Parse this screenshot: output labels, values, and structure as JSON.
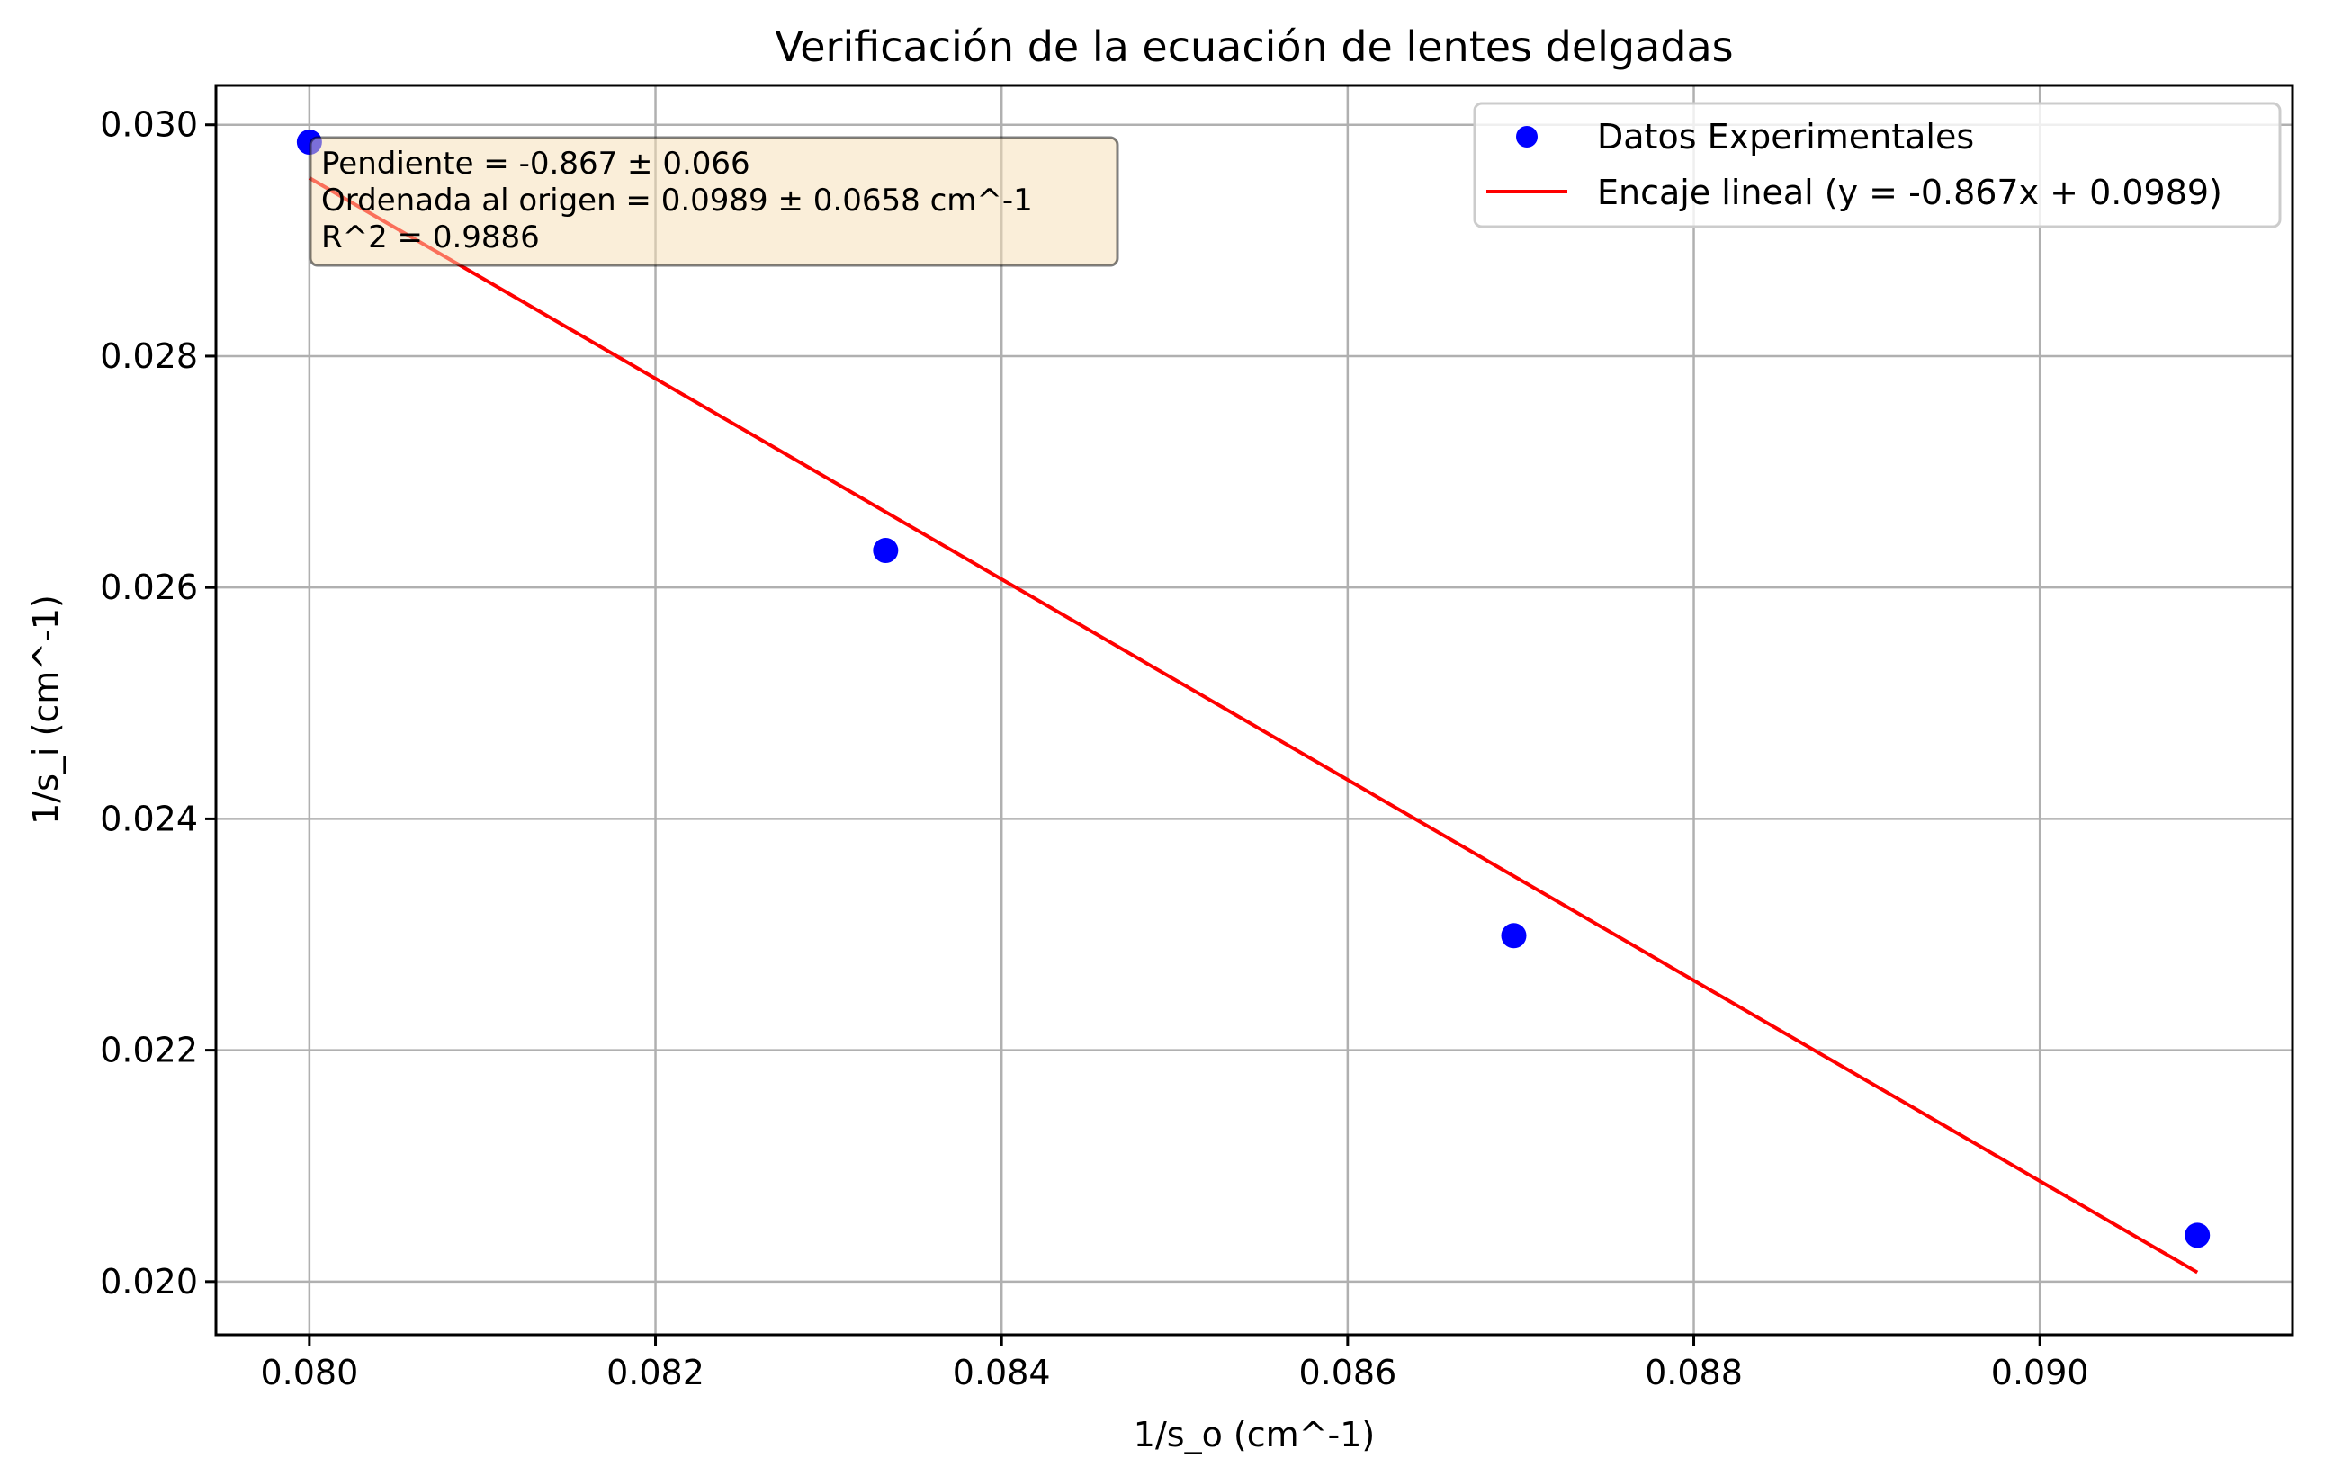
{
  "chart_data": {
    "type": "scatter",
    "title": "Verificación de la ecuación de lentes delgadas",
    "xlabel": "1/s_o (cm^-1)",
    "ylabel": "1/s_i (cm^-1)",
    "xlim": [
      0.07946,
      0.09146
    ],
    "ylim": [
      0.01954,
      0.03034
    ],
    "grid": true,
    "legend_position": "top-right",
    "x_ticks": [
      "0.080",
      "0.082",
      "0.084",
      "0.086",
      "0.088",
      "0.090"
    ],
    "y_ticks": [
      "0.020",
      "0.022",
      "0.024",
      "0.026",
      "0.028",
      "0.030"
    ],
    "series": [
      {
        "name": "Datos Experimentales",
        "kind": "scatter",
        "color": "#0000ff",
        "x": [
          0.08,
          0.08333,
          0.08696,
          0.09091
        ],
        "y": [
          0.02985,
          0.02632,
          0.02299,
          0.0204
        ]
      },
      {
        "name": "Encaje lineal (y = -0.867x + 0.0989)",
        "kind": "line",
        "color": "#ff0000",
        "x": [
          0.08,
          0.09091
        ],
        "y": [
          0.02954,
          0.02008
        ]
      }
    ],
    "annotation": {
      "lines": [
        "Pendiente = -0.867 ± 0.066",
        "Ordenada al origen = 0.0989 ± 0.0658 cm^-1",
        "R^2 = 0.9886"
      ],
      "background": "#f5deb3"
    }
  }
}
